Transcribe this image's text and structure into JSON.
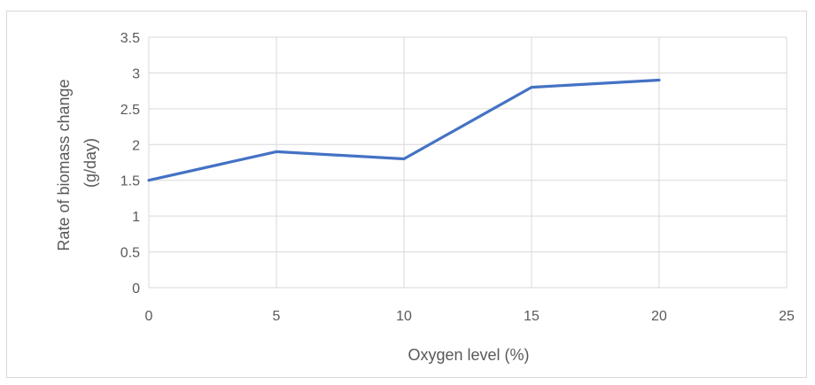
{
  "chart_data": {
    "type": "line",
    "title": "",
    "xlabel": "Oxygen level (%)",
    "ylabel_lines": [
      "Rate of biomass change",
      "(g/day)"
    ],
    "xlim": [
      0,
      25
    ],
    "ylim": [
      0,
      3.5
    ],
    "x_ticks": [
      0,
      5,
      10,
      15,
      20,
      25
    ],
    "x_tick_labels": [
      "0",
      "5",
      "10",
      "15",
      "20",
      "25"
    ],
    "y_ticks": [
      0,
      0.5,
      1,
      1.5,
      2,
      2.5,
      3,
      3.5
    ],
    "y_tick_labels": [
      "0",
      "0.5",
      "1",
      "1.5",
      "2",
      "2.5",
      "3",
      "3.5"
    ],
    "grid": true,
    "legend": "none",
    "series": [
      {
        "x": [
          0,
          5,
          10,
          15,
          20
        ],
        "values": [
          1.5,
          1.9,
          1.8,
          2.8,
          2.9
        ],
        "color": "#4472c4"
      }
    ],
    "colors": {
      "gridline": "#d9d9d9",
      "text": "#595959"
    }
  }
}
